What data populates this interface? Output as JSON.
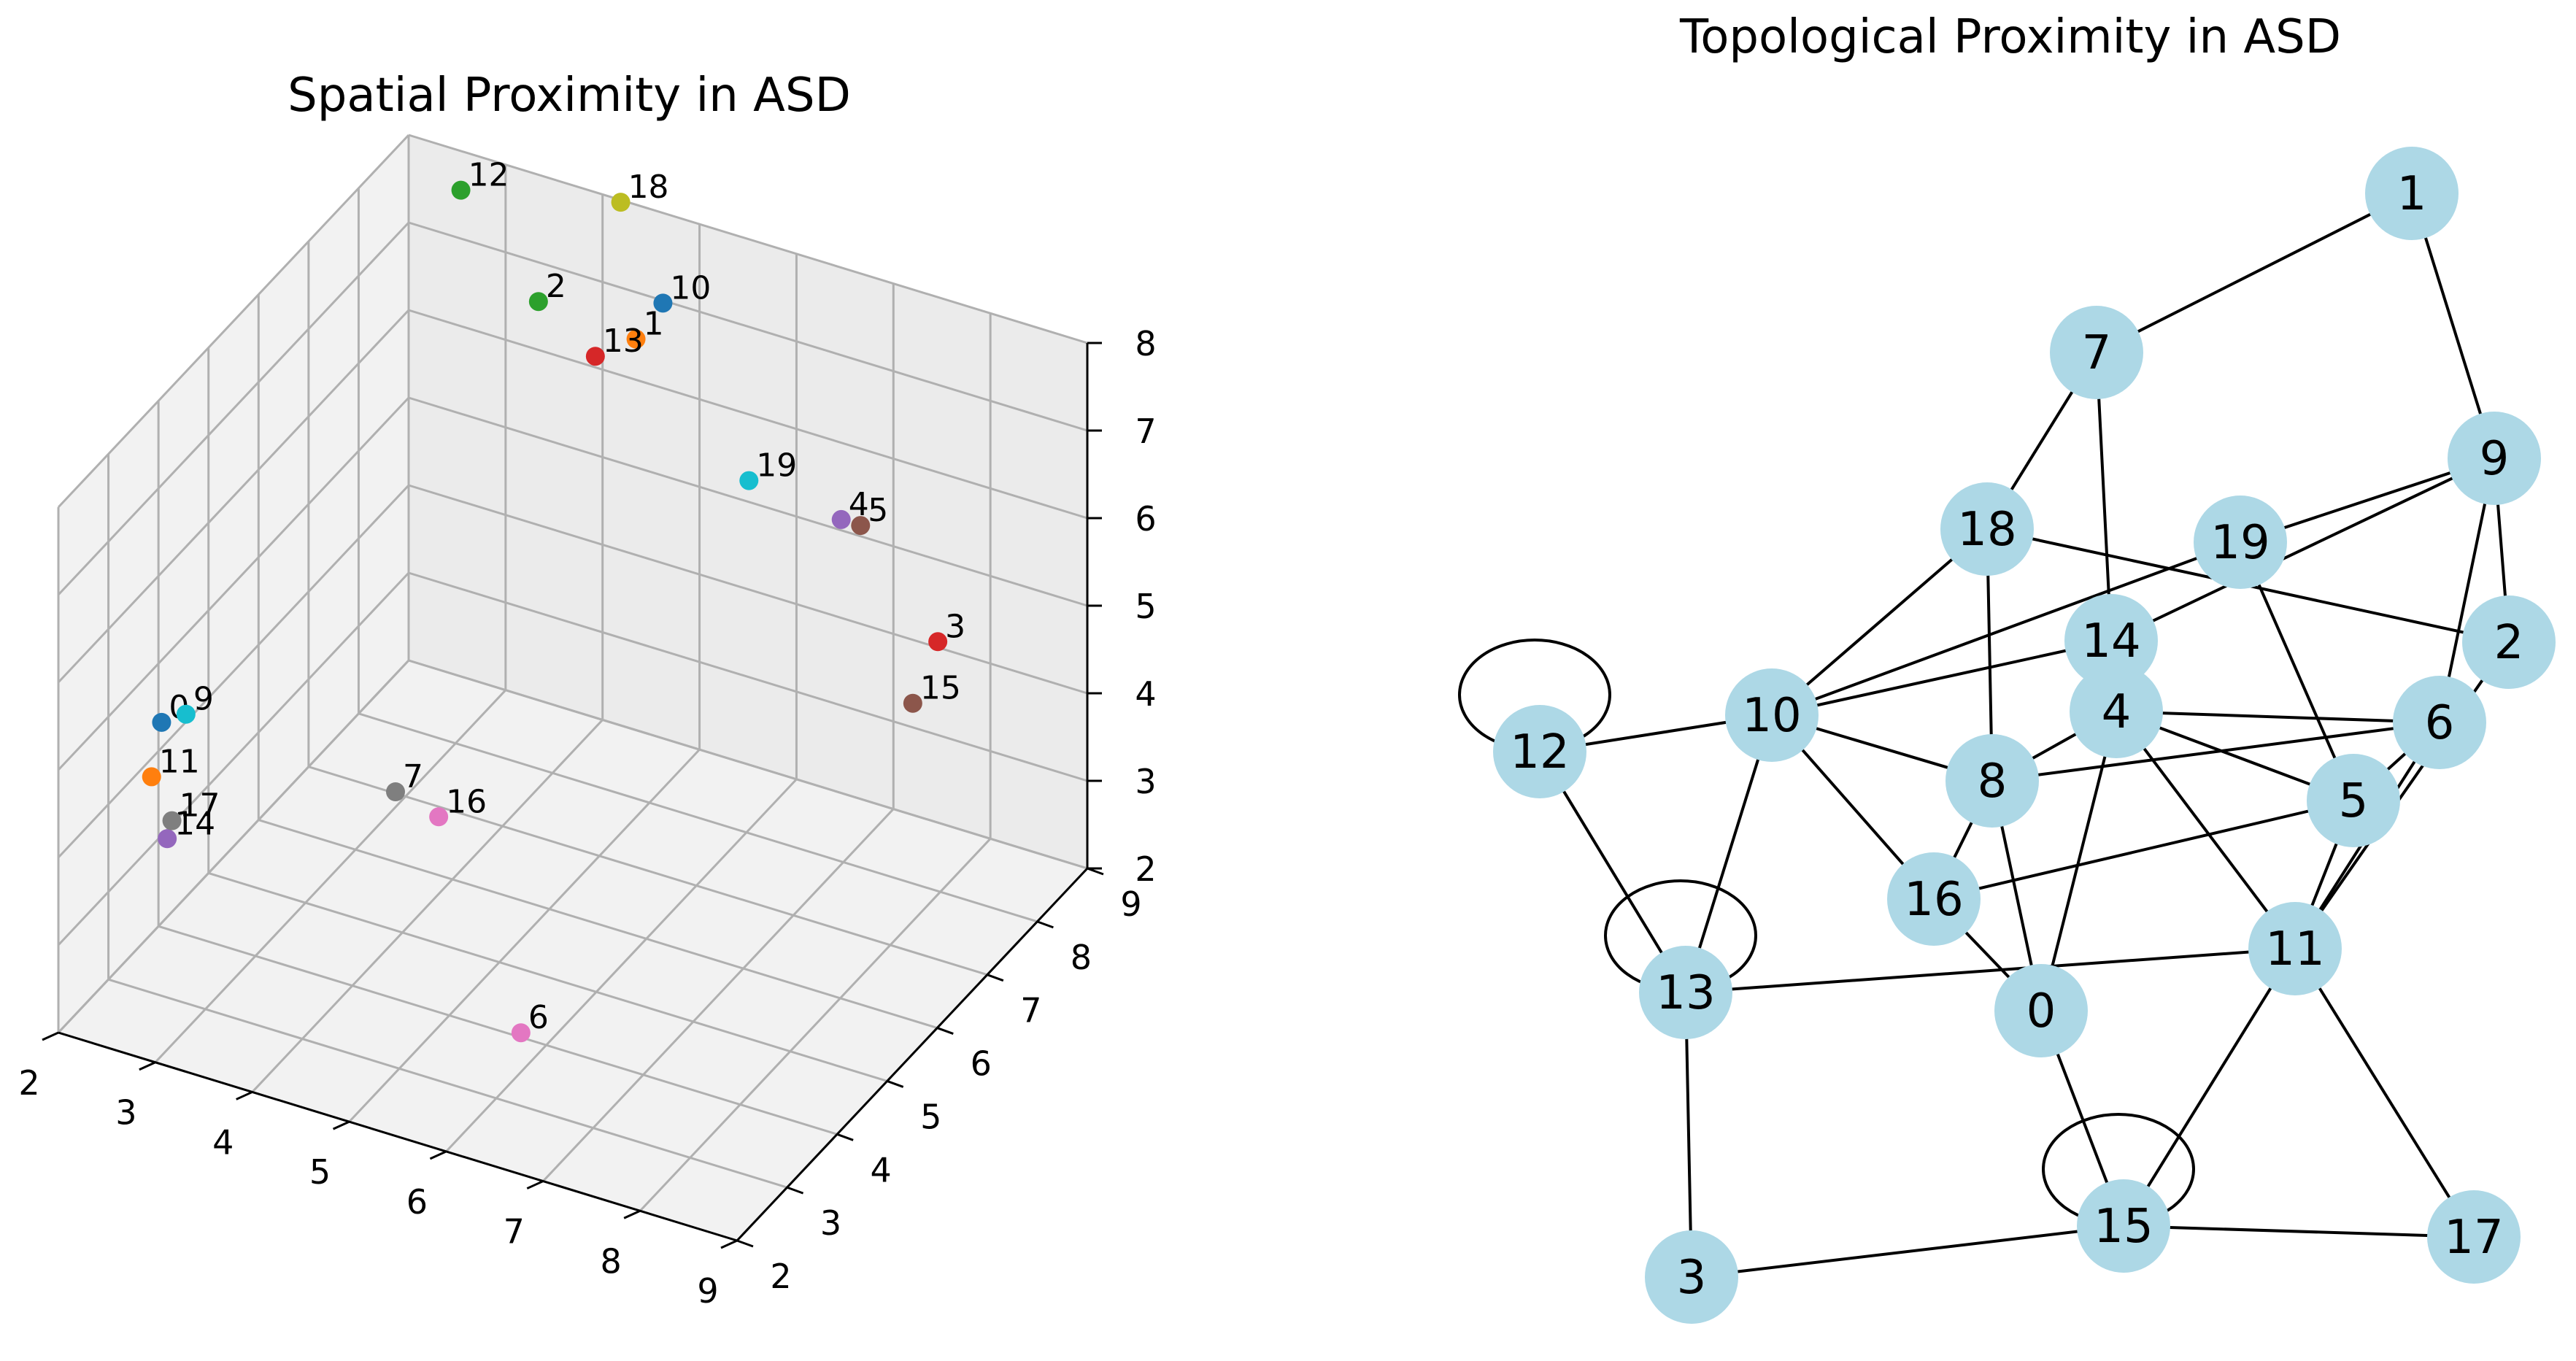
{
  "chart_data": [
    {
      "type": "scatter",
      "subtype": "3d",
      "title": "Spatial Proximity in ASD",
      "xlim": [
        2,
        9
      ],
      "ylim": [
        2,
        9
      ],
      "zlim": [
        2,
        8
      ],
      "x_ticks": [
        "2",
        "3",
        "4",
        "5",
        "6",
        "7",
        "8",
        "9"
      ],
      "y_ticks": [
        "2",
        "3",
        "4",
        "5",
        "6",
        "7",
        "8",
        "9"
      ],
      "z_ticks": [
        "2",
        "3",
        "4",
        "5",
        "6",
        "7",
        "8"
      ],
      "grid": true,
      "points": [
        {
          "label": "0",
          "x": 2.6,
          "y": 2.9,
          "z": 5.2,
          "color": "#1f77b4"
        },
        {
          "label": "1",
          "x": 4.5,
          "y": 8.7,
          "z": 6.7,
          "color": "#ff7f0e"
        },
        {
          "label": "2",
          "x": 3.7,
          "y": 8.3,
          "z": 7.1,
          "color": "#2ca02c"
        },
        {
          "label": "3",
          "x": 8.8,
          "y": 6.4,
          "z": 6.1,
          "color": "#d62728"
        },
        {
          "label": "4",
          "x": 7.7,
          "y": 6.6,
          "z": 7.0,
          "color": "#9467bd"
        },
        {
          "label": "5",
          "x": 7.9,
          "y": 6.6,
          "z": 7.0,
          "color": "#8c564b"
        },
        {
          "label": "6",
          "x": 6.1,
          "y": 3.3,
          "z": 2.6,
          "color": "#e377c2"
        },
        {
          "label": "7",
          "x": 4.6,
          "y": 3.7,
          "z": 4.6,
          "color": "#7f7f7f"
        },
        {
          "label": "9",
          "x": 2.8,
          "y": 3.0,
          "z": 5.3,
          "color": "#17becf"
        },
        {
          "label": "10",
          "x": 5.5,
          "y": 7.3,
          "z": 8.3,
          "color": "#1f77b4"
        },
        {
          "label": "11",
          "x": 2.6,
          "y": 2.7,
          "z": 4.7,
          "color": "#ff7f0e"
        },
        {
          "label": "12",
          "x": 2.9,
          "y": 8.3,
          "z": 8.1,
          "color": "#2ca02c"
        },
        {
          "label": "13",
          "x": 4.7,
          "y": 7.5,
          "z": 7.3,
          "color": "#d62728"
        },
        {
          "label": "14",
          "x": 2.4,
          "y": 3.4,
          "z": 3.5,
          "color": "#9467bd"
        },
        {
          "label": "15",
          "x": 8.8,
          "y": 5.9,
          "z": 5.7,
          "color": "#8c564b"
        },
        {
          "label": "16",
          "x": 5.2,
          "y": 3.4,
          "z": 4.7,
          "color": "#e377c2"
        },
        {
          "label": "17",
          "x": 2.5,
          "y": 3.3,
          "z": 3.8,
          "color": "#7f7f7f"
        },
        {
          "label": "18",
          "x": 4.6,
          "y": 8.2,
          "z": 8.6,
          "color": "#bcbd22"
        },
        {
          "label": "19",
          "x": 6.8,
          "y": 6.5,
          "z": 7.2,
          "color": "#17becf"
        }
      ]
    },
    {
      "type": "diagram",
      "subtype": "network",
      "title": "Topological Proximity in ASD",
      "node_color": "#add8e6",
      "nodes": [
        "0",
        "1",
        "2",
        "3",
        "4",
        "5",
        "6",
        "7",
        "8",
        "9",
        "10",
        "11",
        "12",
        "13",
        "14",
        "15",
        "16",
        "17",
        "18",
        "19"
      ],
      "edges": [
        [
          "1",
          "7"
        ],
        [
          "1",
          "9"
        ],
        [
          "7",
          "18"
        ],
        [
          "7",
          "14"
        ],
        [
          "9",
          "19"
        ],
        [
          "9",
          "14"
        ],
        [
          "9",
          "6"
        ],
        [
          "9",
          "2"
        ],
        [
          "18",
          "10"
        ],
        [
          "18",
          "8"
        ],
        [
          "18",
          "2"
        ],
        [
          "19",
          "10"
        ],
        [
          "19",
          "5"
        ],
        [
          "14",
          "10"
        ],
        [
          "12",
          "10"
        ],
        [
          "12",
          "13"
        ],
        [
          "10",
          "13"
        ],
        [
          "10",
          "8"
        ],
        [
          "10",
          "16"
        ],
        [
          "4",
          "8"
        ],
        [
          "4",
          "6"
        ],
        [
          "4",
          "5"
        ],
        [
          "4",
          "11"
        ],
        [
          "4",
          "0"
        ],
        [
          "8",
          "0"
        ],
        [
          "8",
          "16"
        ],
        [
          "8",
          "6"
        ],
        [
          "16",
          "5"
        ],
        [
          "16",
          "0"
        ],
        [
          "6",
          "11"
        ],
        [
          "6",
          "5"
        ],
        [
          "2",
          "11"
        ],
        [
          "5",
          "11"
        ],
        [
          "13",
          "11"
        ],
        [
          "13",
          "3"
        ],
        [
          "0",
          "15"
        ],
        [
          "11",
          "15"
        ],
        [
          "11",
          "17"
        ],
        [
          "3",
          "15"
        ],
        [
          "15",
          "17"
        ]
      ],
      "self_loops": [
        "12",
        "13",
        "15"
      ]
    }
  ]
}
